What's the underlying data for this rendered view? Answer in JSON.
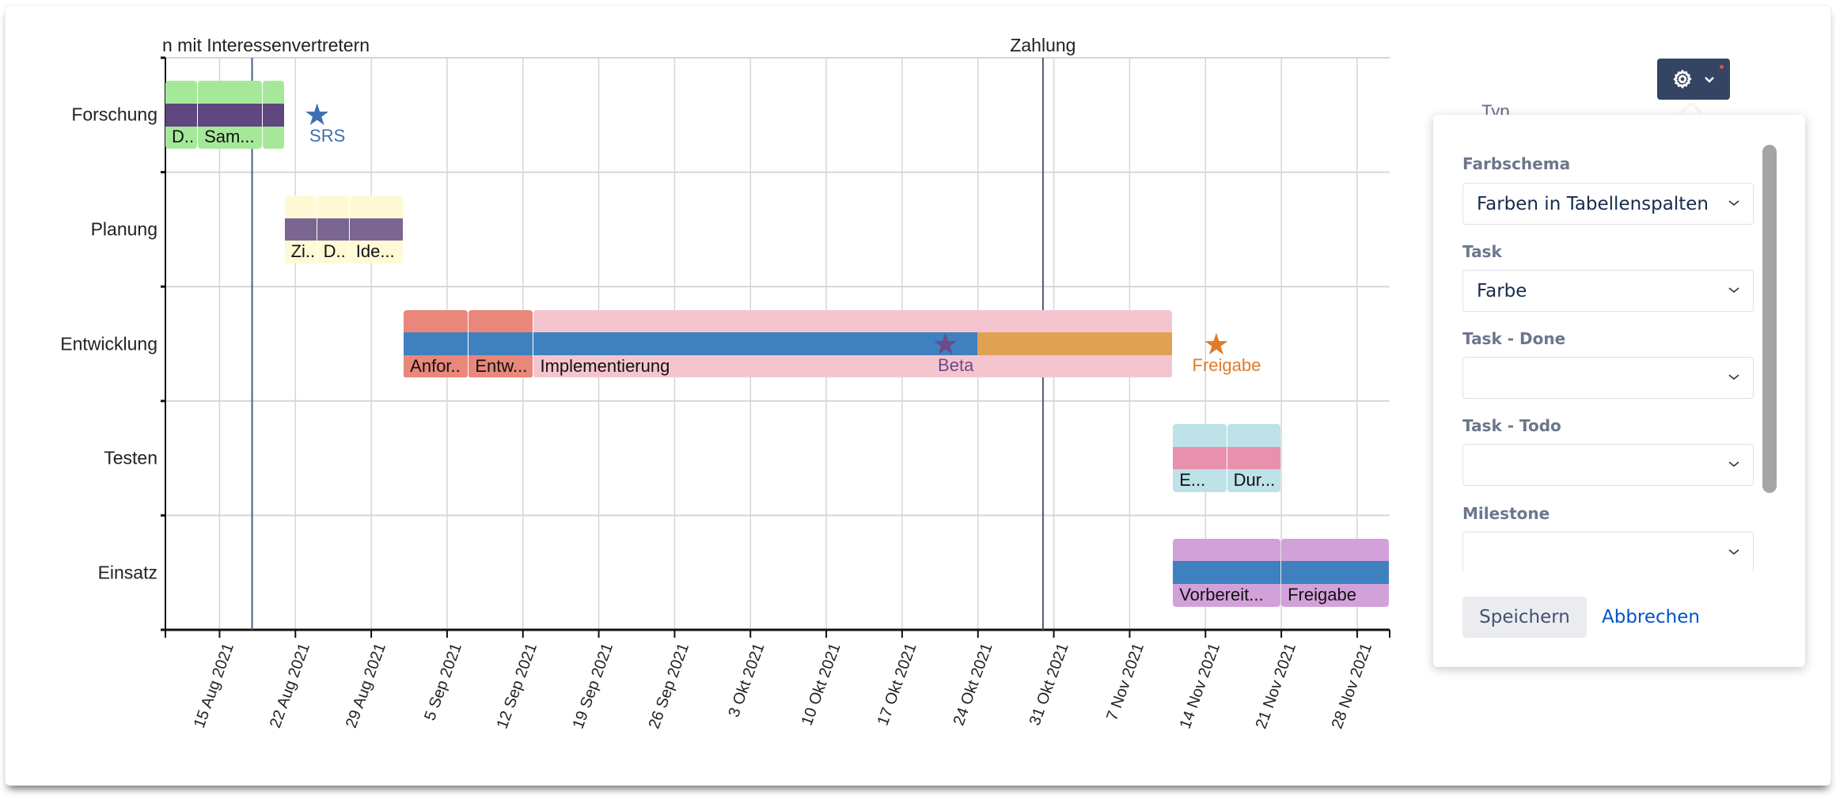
{
  "chart_data": {
    "type": "gantt",
    "domain": [
      "2021-08-10",
      "2021-12-01"
    ],
    "rows": [
      "Forschung",
      "Planung",
      "Entwicklung",
      "Testen",
      "Einsatz"
    ],
    "ticks": [
      {
        "date": "2021-08-15",
        "label": "15 Aug 2021"
      },
      {
        "date": "2021-08-22",
        "label": "22 Aug 2021"
      },
      {
        "date": "2021-08-29",
        "label": "29 Aug 2021"
      },
      {
        "date": "2021-09-05",
        "label": "5 Sep 2021"
      },
      {
        "date": "2021-09-12",
        "label": "12 Sep 2021"
      },
      {
        "date": "2021-09-19",
        "label": "19 Sep 2021"
      },
      {
        "date": "2021-09-26",
        "label": "26 Sep 2021"
      },
      {
        "date": "2021-10-03",
        "label": "3 Okt 2021"
      },
      {
        "date": "2021-10-10",
        "label": "10 Okt 2021"
      },
      {
        "date": "2021-10-17",
        "label": "17 Okt 2021"
      },
      {
        "date": "2021-10-24",
        "label": "24 Okt 2021"
      },
      {
        "date": "2021-10-31",
        "label": "31 Okt 2021"
      },
      {
        "date": "2021-11-07",
        "label": "7 Nov 2021"
      },
      {
        "date": "2021-11-14",
        "label": "14 Nov 2021"
      },
      {
        "date": "2021-11-21",
        "label": "21 Nov 2021"
      },
      {
        "date": "2021-11-28",
        "label": "28 Nov 2021"
      }
    ],
    "tasks": [
      {
        "row": 0,
        "start": "2021-08-10",
        "end": "2021-08-13",
        "label": "D..",
        "color": "#a6e89a",
        "bar": "#5f467e"
      },
      {
        "row": 0,
        "start": "2021-08-13",
        "end": "2021-08-19",
        "label": "Sam...",
        "color": "#a6e89a",
        "bar": "#5f467e"
      },
      {
        "row": 0,
        "start": "2021-08-19",
        "end": "2021-08-21",
        "label": "",
        "color": "#a6e89a",
        "bar": "#5f467e"
      },
      {
        "row": 1,
        "start": "2021-08-21",
        "end": "2021-08-24",
        "label": "Zi..",
        "color": "#fffad6",
        "bar": "#7a6690"
      },
      {
        "row": 1,
        "start": "2021-08-24",
        "end": "2021-08-27",
        "label": "D..",
        "color": "#fffad6",
        "bar": "#7a6690"
      },
      {
        "row": 1,
        "start": "2021-08-27",
        "end": "2021-09-01",
        "label": "Ide...",
        "color": "#fffad6",
        "bar": "#7a6690"
      },
      {
        "row": 2,
        "start": "2021-09-01",
        "end": "2021-09-07",
        "label": "Anfor..",
        "color": "#e8877a",
        "bar": "#3f80bf"
      },
      {
        "row": 2,
        "start": "2021-09-07",
        "end": "2021-09-13",
        "label": "Entw...",
        "color": "#e8877a",
        "bar": "#3f80bf"
      },
      {
        "row": 2,
        "start": "2021-09-13",
        "end": "2021-11-11",
        "label": "Implementierung",
        "color": "#f5c5cf",
        "bar": "#3f80bf",
        "bar2": "#e0a152",
        "bar_split": "2021-10-24"
      },
      {
        "row": 3,
        "start": "2021-11-11",
        "end": "2021-11-16",
        "label": "E...",
        "color": "#bde2e8",
        "bar": "#e891ad"
      },
      {
        "row": 3,
        "start": "2021-11-16",
        "end": "2021-11-21",
        "label": "Dur...",
        "color": "#bde2e8",
        "bar": "#e891ad"
      },
      {
        "row": 4,
        "start": "2021-11-11",
        "end": "2021-11-21",
        "label": "Vorbereit...",
        "color": "#d3a1da",
        "bar": "#3f80bf"
      },
      {
        "row": 4,
        "start": "2021-11-21",
        "end": "2021-12-01",
        "label": "Freigabe",
        "color": "#d3a1da",
        "bar": "#3f80bf"
      }
    ],
    "milestones": [
      {
        "row": 0,
        "date": "2021-08-24",
        "label": "SRS",
        "color": "#3e6fb0"
      },
      {
        "row": 2,
        "date": "2021-10-21",
        "label": "Beta",
        "color": "#6d4a8a"
      },
      {
        "row": 2,
        "date": "2021-11-15",
        "label": "Freigabe",
        "color": "#e07b2a"
      }
    ],
    "markers": [
      {
        "date": "2021-08-18",
        "label": "n mit Interessenvertretern",
        "color": "#4a5f88",
        "align": "clipped-left"
      },
      {
        "date": "2021-10-30",
        "label": "Zahlung",
        "color": "#55577f",
        "align": "center"
      }
    ]
  },
  "toolbar": {
    "settings_icon": "gear-icon",
    "dropdown_icon": "chevron-down-icon",
    "accent": "#344563"
  },
  "hidden_header": "Typ",
  "settings": {
    "fields": [
      {
        "label": "Farbschema",
        "value": "Farben in Tabellenspalten"
      },
      {
        "label": "Task",
        "value": "Farbe"
      },
      {
        "label": "Task - Done",
        "value": ""
      },
      {
        "label": "Task - Todo",
        "value": ""
      },
      {
        "label": "Milestone",
        "value": ""
      }
    ],
    "save_label": "Speichern",
    "cancel_label": "Abbrechen"
  }
}
